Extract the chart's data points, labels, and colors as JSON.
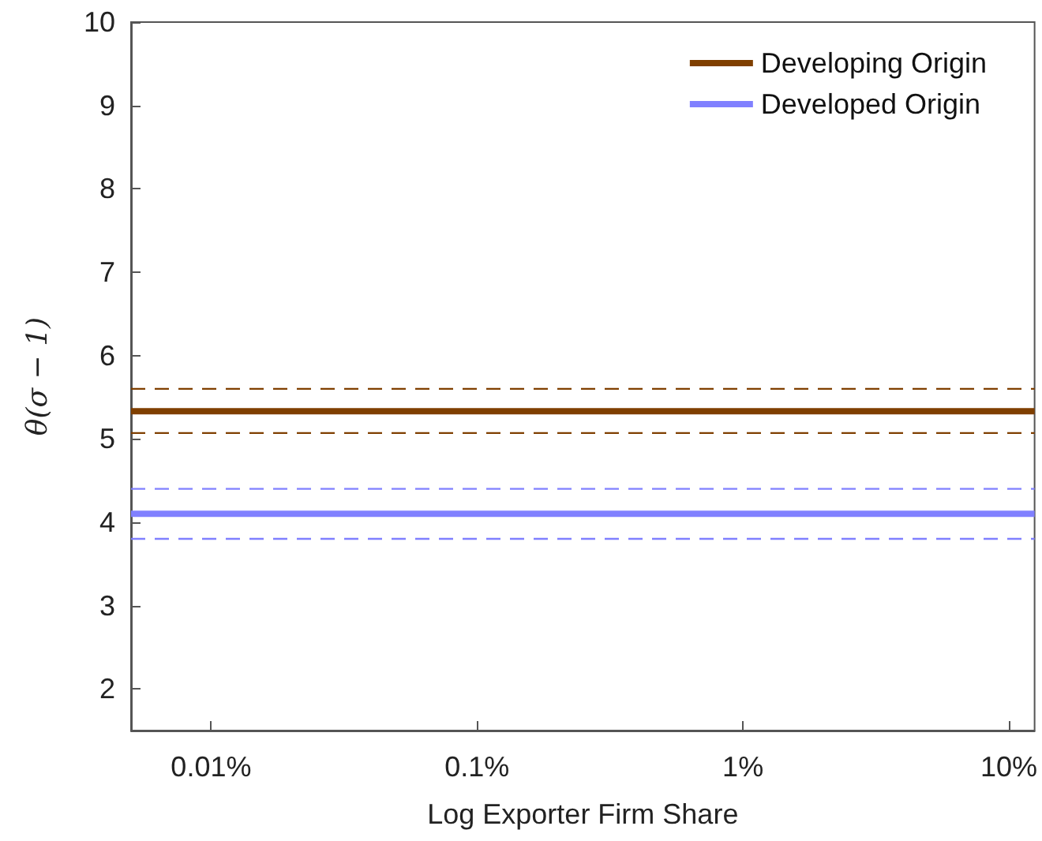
{
  "chart_data": {
    "type": "line",
    "xlabel": "Log Exporter Firm Share",
    "ylabel": "θ(σ − 1)",
    "x": [
      0.005,
      12.5
    ],
    "series": [
      {
        "name": "Developing Origin",
        "color": "#7f3f00",
        "values": [
          5.33,
          5.33
        ]
      },
      {
        "name": "Developed Origin",
        "color": "#8080ff",
        "values": [
          4.1,
          4.1
        ]
      },
      {
        "color": "#7f3f00",
        "values": [
          5.6,
          5.6
        ],
        "line_style": "dashed"
      },
      {
        "color": "#7f3f00",
        "values": [
          5.07,
          5.07
        ],
        "line_style": "dashed"
      },
      {
        "color": "#8080ff",
        "values": [
          4.4,
          4.4
        ],
        "line_style": "dashed"
      },
      {
        "color": "#8080ff",
        "values": [
          3.8,
          3.8
        ],
        "line_style": "dashed"
      }
    ],
    "log": "x",
    "xlim": [
      0.005,
      12.5
    ],
    "ylim": [
      1.5,
      10
    ],
    "xticks": [
      {
        "value": 0.01,
        "label": "0.01%"
      },
      {
        "value": 0.1,
        "label": "0.1%"
      },
      {
        "value": 1,
        "label": "1%"
      },
      {
        "value": 10,
        "label": "10%"
      }
    ],
    "yticks": [
      2,
      3,
      4,
      5,
      6,
      7,
      8,
      9,
      10
    ],
    "grid": false,
    "legend": "top right",
    "marker": "none",
    "line_style": "solid"
  }
}
